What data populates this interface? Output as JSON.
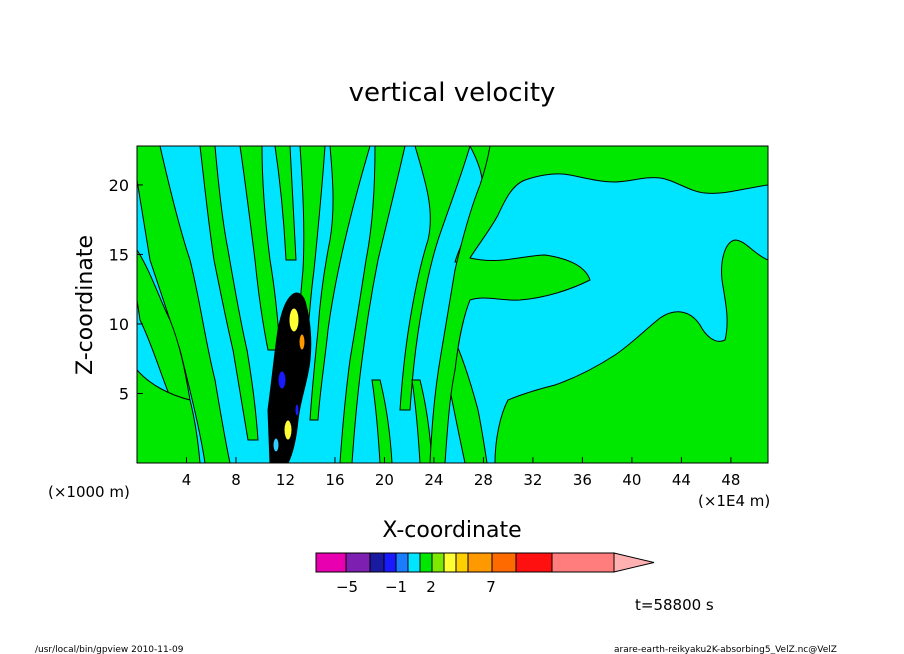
{
  "chart_data": {
    "type": "heatmap",
    "title": "vertical velocity",
    "xlabel": "X-coordinate",
    "ylabel": "Z-coordinate",
    "x_unit_left": "(×1000 m)",
    "x_unit_right": "(×1E4 m)",
    "x_ticks": [
      4,
      8,
      12,
      16,
      20,
      24,
      28,
      32,
      36,
      40,
      44,
      48
    ],
    "y_ticks": [
      5,
      10,
      15,
      20
    ],
    "xlim": [
      0,
      51
    ],
    "ylim": [
      0,
      22.8
    ],
    "colors": {
      "cyan": "#00e5ff",
      "green": "#00e800",
      "lightblue": "#33ccff",
      "dark": "#000000",
      "yellow": "#ffff33",
      "blue": "#1a1aff"
    },
    "colorbar": {
      "levels_colors": [
        "#e800b0",
        "#7d1fb0",
        "#1a1aa0",
        "#1a1aff",
        "#1a7dff",
        "#00e5ff",
        "#00e800",
        "#7de800",
        "#ffff33",
        "#ffd000",
        "#ff9900",
        "#ff6a00",
        "#ff1010",
        "#ff7d7d",
        "#ffb0b0"
      ],
      "tick_labels": [
        "−5",
        "−1",
        "2",
        "7"
      ]
    },
    "time_label": "t=58800 s",
    "footer_left": "/usr/local/bin/gpview  2010-11-09",
    "footer_right": "arare-earth-reikyaku2K-absorbing5_VelZ.nc@VelZ"
  }
}
